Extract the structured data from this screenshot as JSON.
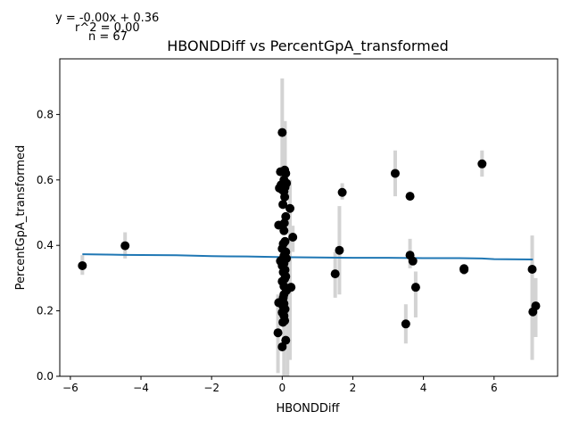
{
  "annotations": {
    "equation": "y = -0.00x + 0.36",
    "r2": "r^2 = 0.00",
    "n": "n = 67"
  },
  "chart_data": {
    "type": "scatter",
    "title": "HBONDDiff vs PercentGpA_transformed",
    "xlabel": "HBONDDiff",
    "ylabel": "PercentGpA_transformed",
    "xlim": [
      -6.3,
      7.8
    ],
    "ylim": [
      0.0,
      0.97
    ],
    "xticks": [
      -6,
      -4,
      -2,
      0,
      2,
      4,
      6
    ],
    "yticks": [
      0.0,
      0.2,
      0.4,
      0.6,
      0.8
    ],
    "xtick_labels": [
      "−6",
      "−4",
      "−2",
      "0",
      "2",
      "4",
      "6"
    ],
    "ytick_labels": [
      "0.0",
      "0.2",
      "0.4",
      "0.6",
      "0.8"
    ],
    "grid": false,
    "colors": {
      "points": "#000000",
      "error_bars": "#d3d3d3",
      "fit_line": "#1f77b4"
    },
    "fit_line": {
      "x": [
        -5.66,
        -4.45,
        -3.0,
        -2.0,
        -1.0,
        0.0,
        1.0,
        2.0,
        3.0,
        4.0,
        5.0,
        5.66,
        6.0,
        7.1
      ],
      "y": [
        0.373,
        0.371,
        0.37,
        0.367,
        0.366,
        0.364,
        0.363,
        0.362,
        0.362,
        0.361,
        0.361,
        0.36,
        0.358,
        0.357
      ]
    },
    "error_bars": [
      {
        "x": -5.66,
        "low": 0.31,
        "high": 0.37
      },
      {
        "x": -4.45,
        "low": 0.36,
        "high": 0.44
      },
      {
        "x": 0.0,
        "low": 0.56,
        "high": 0.91
      },
      {
        "x": 0.08,
        "low": 0.52,
        "high": 0.78
      },
      {
        "x": -0.12,
        "low": 0.01,
        "high": 0.25
      },
      {
        "x": 0.05,
        "low": 0.0,
        "high": 0.3
      },
      {
        "x": 0.15,
        "low": 0.0,
        "high": 0.4
      },
      {
        "x": 0.22,
        "low": 0.05,
        "high": 0.6
      },
      {
        "x": 0.3,
        "low": 0.38,
        "high": 0.46
      },
      {
        "x": 1.5,
        "low": 0.24,
        "high": 0.38
      },
      {
        "x": 1.62,
        "low": 0.25,
        "high": 0.52
      },
      {
        "x": 1.7,
        "low": 0.54,
        "high": 0.59
      },
      {
        "x": 3.2,
        "low": 0.55,
        "high": 0.69
      },
      {
        "x": 3.5,
        "low": 0.1,
        "high": 0.22
      },
      {
        "x": 3.62,
        "low": 0.33,
        "high": 0.42
      },
      {
        "x": 3.78,
        "low": 0.18,
        "high": 0.32
      },
      {
        "x": 5.15,
        "low": 0.31,
        "high": 0.34
      },
      {
        "x": 5.66,
        "low": 0.61,
        "high": 0.69
      },
      {
        "x": 7.08,
        "low": 0.05,
        "high": 0.43
      },
      {
        "x": 7.18,
        "low": 0.12,
        "high": 0.3
      }
    ],
    "points": {
      "x": [
        -5.66,
        -4.45,
        0.0,
        0.07,
        0.1,
        -0.05,
        0.05,
        0.12,
        -0.03,
        0.08,
        -0.08,
        0.0,
        0.05,
        0.07,
        0.02,
        0.1,
        0.06,
        -0.1,
        0.05,
        0.08,
        0.03,
        0.0,
        0.1,
        0.05,
        0.12,
        -0.05,
        0.05,
        0.0,
        0.08,
        0.03,
        0.1,
        0.07,
        0.0,
        0.05,
        0.12,
        -0.1,
        0.05,
        0.02,
        0.08,
        0.0,
        0.05,
        0.07,
        0.02,
        0.1,
        0.0,
        -0.12,
        0.05,
        0.03,
        0.22,
        0.3,
        0.25,
        1.5,
        1.62,
        1.7,
        3.2,
        3.62,
        3.5,
        3.62,
        3.7,
        3.78,
        5.15,
        5.66,
        7.08,
        7.1,
        7.18,
        5.15,
        -0.02
      ],
      "y": [
        0.338,
        0.399,
        0.745,
        0.63,
        0.62,
        0.625,
        0.6,
        0.59,
        0.585,
        0.578,
        0.575,
        0.57,
        0.565,
        0.548,
        0.525,
        0.488,
        0.468,
        0.462,
        0.445,
        0.412,
        0.405,
        0.39,
        0.38,
        0.368,
        0.36,
        0.352,
        0.345,
        0.338,
        0.325,
        0.318,
        0.305,
        0.298,
        0.29,
        0.275,
        0.262,
        0.225,
        0.222,
        0.215,
        0.205,
        0.195,
        0.185,
        0.17,
        0.165,
        0.11,
        0.09,
        0.133,
        0.25,
        0.24,
        0.513,
        0.425,
        0.272,
        0.313,
        0.385,
        0.562,
        0.62,
        0.55,
        0.16,
        0.37,
        0.352,
        0.272,
        0.326,
        0.649,
        0.327,
        0.197,
        0.215,
        0.329,
        0.355
      ]
    }
  }
}
